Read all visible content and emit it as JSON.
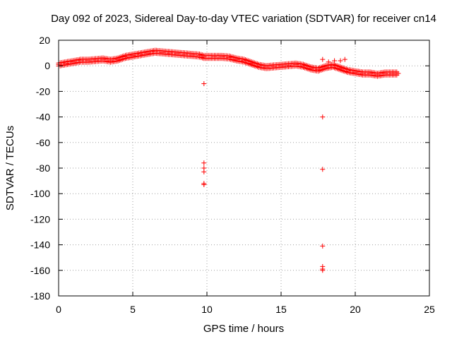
{
  "chart_data": {
    "type": "scatter",
    "title": "Day 092 of 2023, Sidereal Day-to-day VTEC variation (SDTVAR) for receiver cn14",
    "xlabel": "GPS time / hours",
    "ylabel": "SDTVAR / TECUs",
    "xlim": [
      0,
      25
    ],
    "ylim": [
      -180,
      20
    ],
    "xticks": [
      0,
      5,
      10,
      15,
      20,
      25
    ],
    "yticks": [
      20,
      0,
      -20,
      -40,
      -60,
      -80,
      -100,
      -120,
      -140,
      -160,
      -180
    ],
    "grid": true,
    "marker": "+",
    "color": "#ff0000",
    "series": [
      {
        "name": "SDTVAR",
        "x": [
          0.0,
          0.5,
          1.0,
          1.5,
          2.0,
          2.5,
          3.0,
          3.5,
          4.0,
          4.5,
          5.0,
          5.5,
          6.0,
          6.5,
          7.0,
          7.5,
          8.0,
          8.5,
          9.0,
          9.5,
          9.8,
          10.5,
          11.0,
          11.5,
          12.0,
          12.5,
          13.0,
          13.5,
          14.0,
          14.5,
          15.0,
          15.5,
          16.0,
          16.5,
          17.0,
          17.5,
          18.0,
          18.5,
          19.0,
          19.5,
          20.0,
          20.5,
          21.0,
          21.5,
          22.0,
          22.5,
          22.9,
          9.8,
          9.8,
          9.8,
          9.8,
          9.8,
          9.8,
          17.8,
          17.8,
          17.8,
          17.8,
          17.8,
          17.8,
          17.8,
          18.2,
          18.6,
          19.0,
          19.3
        ],
        "y": [
          1,
          2,
          3,
          4,
          4,
          4.5,
          5,
          4,
          5,
          7,
          8,
          9,
          10,
          11,
          10.5,
          10,
          9.5,
          9,
          8.5,
          8,
          7,
          7,
          7,
          6.5,
          5,
          4,
          2,
          0,
          -1,
          -0.5,
          0,
          0.5,
          1,
          0,
          -2,
          -3,
          -1,
          0,
          -2,
          -4,
          -5,
          -6,
          -6,
          -7,
          -6,
          -6,
          -6,
          -14,
          -76,
          -80,
          -83,
          -92,
          -93,
          5,
          -40,
          -81,
          -141,
          -157,
          -159,
          -160,
          3,
          4,
          4,
          5
        ]
      }
    ]
  }
}
